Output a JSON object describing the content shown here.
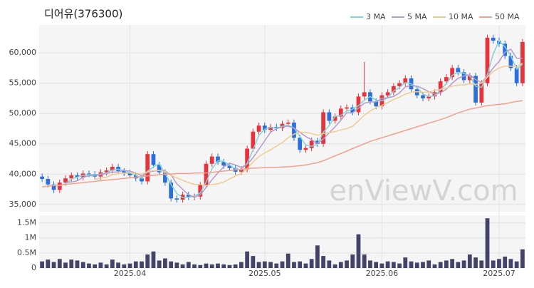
{
  "chart_data": {
    "type": "candlestick",
    "title": "디어유(376300)",
    "watermark": "enViewV.com",
    "categories": [
      null,
      null,
      null,
      null,
      null,
      null,
      null,
      null,
      null,
      null,
      null,
      null,
      null,
      null,
      null,
      "2025.04",
      null,
      null,
      null,
      null,
      null,
      null,
      null,
      null,
      null,
      null,
      null,
      null,
      null,
      null,
      null,
      null,
      null,
      null,
      null,
      null,
      null,
      null,
      "2025.05",
      null,
      null,
      null,
      null,
      null,
      null,
      null,
      null,
      null,
      null,
      null,
      null,
      null,
      null,
      null,
      null,
      null,
      null,
      null,
      "2025.06",
      null,
      null,
      null,
      null,
      null,
      null,
      null,
      null,
      null,
      null,
      null,
      null,
      null,
      null,
      null,
      null,
      null,
      null,
      null,
      "2025.07",
      null,
      null,
      null,
      null
    ],
    "open": [
      39600,
      39200,
      38300,
      37400,
      38600,
      39300,
      39800,
      39500,
      40100,
      40000,
      39600,
      40300,
      40600,
      41200,
      40500,
      40200,
      39800,
      39300,
      38800,
      43300,
      41500,
      40300,
      38600,
      36000,
      35800,
      36600,
      36200,
      36300,
      38200,
      41700,
      42900,
      42000,
      41400,
      41000,
      40400,
      40800,
      44200,
      47000,
      48000,
      47300,
      47800,
      47600,
      48300,
      48500,
      46000,
      44000,
      44300,
      45500,
      45000,
      50200,
      48800,
      49500,
      50800,
      51000,
      50200,
      52800,
      53500,
      52000,
      51200,
      53000,
      53500,
      54500,
      55000,
      55800,
      54000,
      53000,
      52500,
      52800,
      53500,
      55300,
      56000,
      57500,
      56800,
      55500,
      56200,
      51800,
      55000,
      62500,
      62000,
      61500,
      59500,
      57500,
      55000
    ],
    "high": [
      40100,
      39700,
      38800,
      39100,
      39800,
      40300,
      40300,
      40600,
      40600,
      40500,
      40800,
      41100,
      41700,
      41700,
      41000,
      40700,
      40300,
      39800,
      43800,
      43800,
      42000,
      40800,
      39100,
      36500,
      37100,
      37100,
      36800,
      38700,
      42200,
      43400,
      43400,
      42500,
      41900,
      41500,
      41300,
      44700,
      47500,
      48500,
      48500,
      48300,
      48300,
      48800,
      49000,
      49000,
      46500,
      44800,
      46000,
      46000,
      50700,
      50700,
      50000,
      51300,
      51500,
      51500,
      53300,
      58500,
      54000,
      52500,
      53500,
      54000,
      55000,
      55500,
      56300,
      56300,
      54500,
      53500,
      53300,
      54000,
      55800,
      56500,
      58000,
      58000,
      57300,
      56700,
      56700,
      55500,
      63000,
      63000,
      62500,
      62000,
      60000,
      58000,
      62300
    ],
    "low": [
      38700,
      37800,
      36900,
      36900,
      38100,
      38800,
      39000,
      39000,
      39500,
      39100,
      39100,
      39800,
      40100,
      40000,
      39700,
      39300,
      38800,
      38300,
      38300,
      41000,
      39800,
      38100,
      35500,
      35300,
      35300,
      35700,
      35700,
      35800,
      37700,
      41200,
      41500,
      40900,
      40500,
      39900,
      39900,
      40300,
      43700,
      46500,
      46800,
      46800,
      47100,
      47100,
      47800,
      45500,
      43500,
      43500,
      43800,
      44500,
      44500,
      48300,
      48300,
      49000,
      50300,
      49700,
      49700,
      52300,
      51500,
      50700,
      50700,
      52500,
      53000,
      54000,
      54500,
      53500,
      52500,
      52000,
      52000,
      52300,
      53000,
      54800,
      55500,
      56300,
      55000,
      55000,
      51300,
      51300,
      54500,
      61500,
      61000,
      59000,
      57000,
      54500,
      54500
    ],
    "close": [
      39200,
      38300,
      37400,
      38600,
      39300,
      39800,
      39500,
      40100,
      40000,
      39600,
      40300,
      40600,
      41200,
      40500,
      40200,
      39800,
      39300,
      38800,
      43300,
      41500,
      40300,
      38600,
      36000,
      35800,
      36600,
      36200,
      36300,
      38200,
      41700,
      42900,
      42000,
      41400,
      41000,
      40400,
      40800,
      44200,
      47000,
      48000,
      47300,
      47800,
      47600,
      48300,
      48500,
      46000,
      44000,
      44300,
      45500,
      45000,
      50200,
      48800,
      49500,
      50800,
      51000,
      50200,
      52800,
      53500,
      52000,
      51200,
      53000,
      53500,
      54500,
      55000,
      55800,
      54000,
      53000,
      52500,
      52800,
      53500,
      55300,
      56000,
      57500,
      56800,
      55500,
      56200,
      51800,
      55000,
      62500,
      62000,
      61500,
      59500,
      57500,
      55000,
      61800
    ],
    "up_color": "#e8323c",
    "down_color": "#2b6fdb",
    "ylim": [
      33800,
      64600
    ],
    "yticks": [
      {
        "value": 35000,
        "label": "35,000"
      },
      {
        "value": 40000,
        "label": "40,000"
      },
      {
        "value": 45000,
        "label": "45,000"
      },
      {
        "value": 50000,
        "label": "50,000"
      },
      {
        "value": 55000,
        "label": "55,000"
      },
      {
        "value": 60000,
        "label": "60,000"
      }
    ],
    "grid": true,
    "legend": "top-right",
    "series": [
      {
        "name": "3 MA",
        "color": "#7fd3d8",
        "values": [
          null,
          null,
          38300,
          38100,
          38400,
          39200,
          39500,
          39800,
          39900,
          39900,
          40000,
          40200,
          40700,
          40800,
          40600,
          40200,
          39800,
          39300,
          40500,
          41200,
          41700,
          40100,
          38300,
          36800,
          36100,
          36200,
          36400,
          36900,
          38700,
          40900,
          42200,
          42100,
          41500,
          40900,
          40700,
          41800,
          44000,
          46400,
          47400,
          47700,
          47600,
          47900,
          48100,
          47600,
          46200,
          44800,
          44600,
          44900,
          46900,
          48000,
          49500,
          49700,
          50400,
          50700,
          51300,
          52200,
          52800,
          52200,
          52100,
          52600,
          53700,
          54300,
          55100,
          54900,
          54300,
          53200,
          52800,
          52900,
          53900,
          54900,
          56300,
          56800,
          56600,
          56200,
          54500,
          54300,
          56400,
          59800,
          62000,
          61000,
          59500,
          57300,
          58100
        ]
      },
      {
        "name": "5 MA",
        "color": "#b59bcb",
        "values": [
          null,
          null,
          null,
          null,
          38600,
          38700,
          38900,
          39500,
          39700,
          39800,
          39900,
          40100,
          40300,
          40400,
          40600,
          40500,
          40200,
          39700,
          40300,
          40500,
          40600,
          40500,
          39900,
          38400,
          37500,
          36600,
          36200,
          36600,
          37800,
          39100,
          40200,
          41200,
          41800,
          41500,
          41100,
          41600,
          42700,
          44100,
          45500,
          46900,
          47500,
          47800,
          47900,
          47600,
          46900,
          46200,
          45700,
          45000,
          45800,
          46800,
          47800,
          48900,
          50100,
          50100,
          50900,
          51700,
          51900,
          51900,
          52500,
          52600,
          52800,
          53400,
          54400,
          54600,
          54500,
          54100,
          53600,
          53200,
          53400,
          54000,
          55000,
          55800,
          56200,
          56400,
          55600,
          55100,
          56200,
          57500,
          58600,
          60100,
          60600,
          59100,
          59100
        ]
      },
      {
        "name": "10 MA",
        "color": "#f2cb90",
        "values": [
          null,
          null,
          null,
          null,
          null,
          null,
          null,
          null,
          null,
          39200,
          39300,
          39500,
          39900,
          40100,
          40200,
          40200,
          40200,
          40000,
          40400,
          40600,
          40600,
          40400,
          39800,
          39400,
          39000,
          38600,
          38300,
          38300,
          38100,
          38300,
          38400,
          38700,
          39200,
          39700,
          40100,
          40900,
          42000,
          42900,
          43500,
          44000,
          44600,
          45200,
          46000,
          46600,
          46900,
          46900,
          46700,
          46400,
          46700,
          46800,
          47000,
          47300,
          47500,
          47900,
          48800,
          49700,
          50400,
          51000,
          51300,
          51800,
          52300,
          52700,
          53200,
          53500,
          53600,
          53500,
          53500,
          53800,
          54000,
          54200,
          54500,
          54700,
          54700,
          54900,
          54800,
          55000,
          56000,
          56900,
          57500,
          57800,
          57800,
          57700,
          58300
        ]
      },
      {
        "name": "50 MA",
        "color": "#f4a08c",
        "values": [
          37900,
          38000,
          38100,
          38200,
          38300,
          38400,
          38500,
          38600,
          38700,
          38800,
          38900,
          39000,
          39100,
          39200,
          39300,
          39400,
          39500,
          39600,
          39700,
          39800,
          39900,
          40000,
          40000,
          40100,
          40100,
          40100,
          40200,
          40200,
          40200,
          40300,
          40400,
          40500,
          40600,
          40700,
          40800,
          40900,
          41000,
          41000,
          41100,
          41100,
          41100,
          41200,
          41200,
          41300,
          41400,
          41500,
          41700,
          41900,
          42200,
          42600,
          43000,
          43400,
          43800,
          44200,
          44600,
          45000,
          45400,
          45700,
          46000,
          46300,
          46600,
          46900,
          47200,
          47500,
          47800,
          48100,
          48400,
          48700,
          49000,
          49300,
          49700,
          50100,
          50400,
          50700,
          50900,
          51100,
          51300,
          51400,
          51500,
          51600,
          51800,
          52000,
          52100
        ]
      }
    ],
    "volume": {
      "color": "#434268",
      "values": [
        220000,
        280000,
        200000,
        300000,
        180000,
        280000,
        250000,
        200000,
        150000,
        120000,
        180000,
        120000,
        280000,
        180000,
        120000,
        150000,
        220000,
        220000,
        450000,
        550000,
        250000,
        320000,
        220000,
        180000,
        120000,
        200000,
        120000,
        100000,
        150000,
        120000,
        150000,
        120000,
        100000,
        120000,
        200000,
        550000,
        400000,
        200000,
        220000,
        200000,
        150000,
        220000,
        480000,
        200000,
        220000,
        150000,
        300000,
        750000,
        400000,
        250000,
        120000,
        200000,
        250000,
        450000,
        1120000,
        450000,
        250000,
        200000,
        150000,
        220000,
        200000,
        150000,
        350000,
        220000,
        180000,
        200000,
        250000,
        120000,
        200000,
        250000,
        300000,
        200000,
        250000,
        450000,
        350000,
        250000,
        1650000,
        250000,
        300000,
        380000,
        300000,
        220000,
        620000
      ],
      "ylim": [
        0,
        1750000
      ],
      "yticks": [
        0,
        {
          "value": 500000,
          "label": "0.5M"
        },
        {
          "value": 1000000,
          "label": "1M"
        },
        {
          "value": 1500000,
          "label": "1.5M"
        }
      ]
    }
  }
}
